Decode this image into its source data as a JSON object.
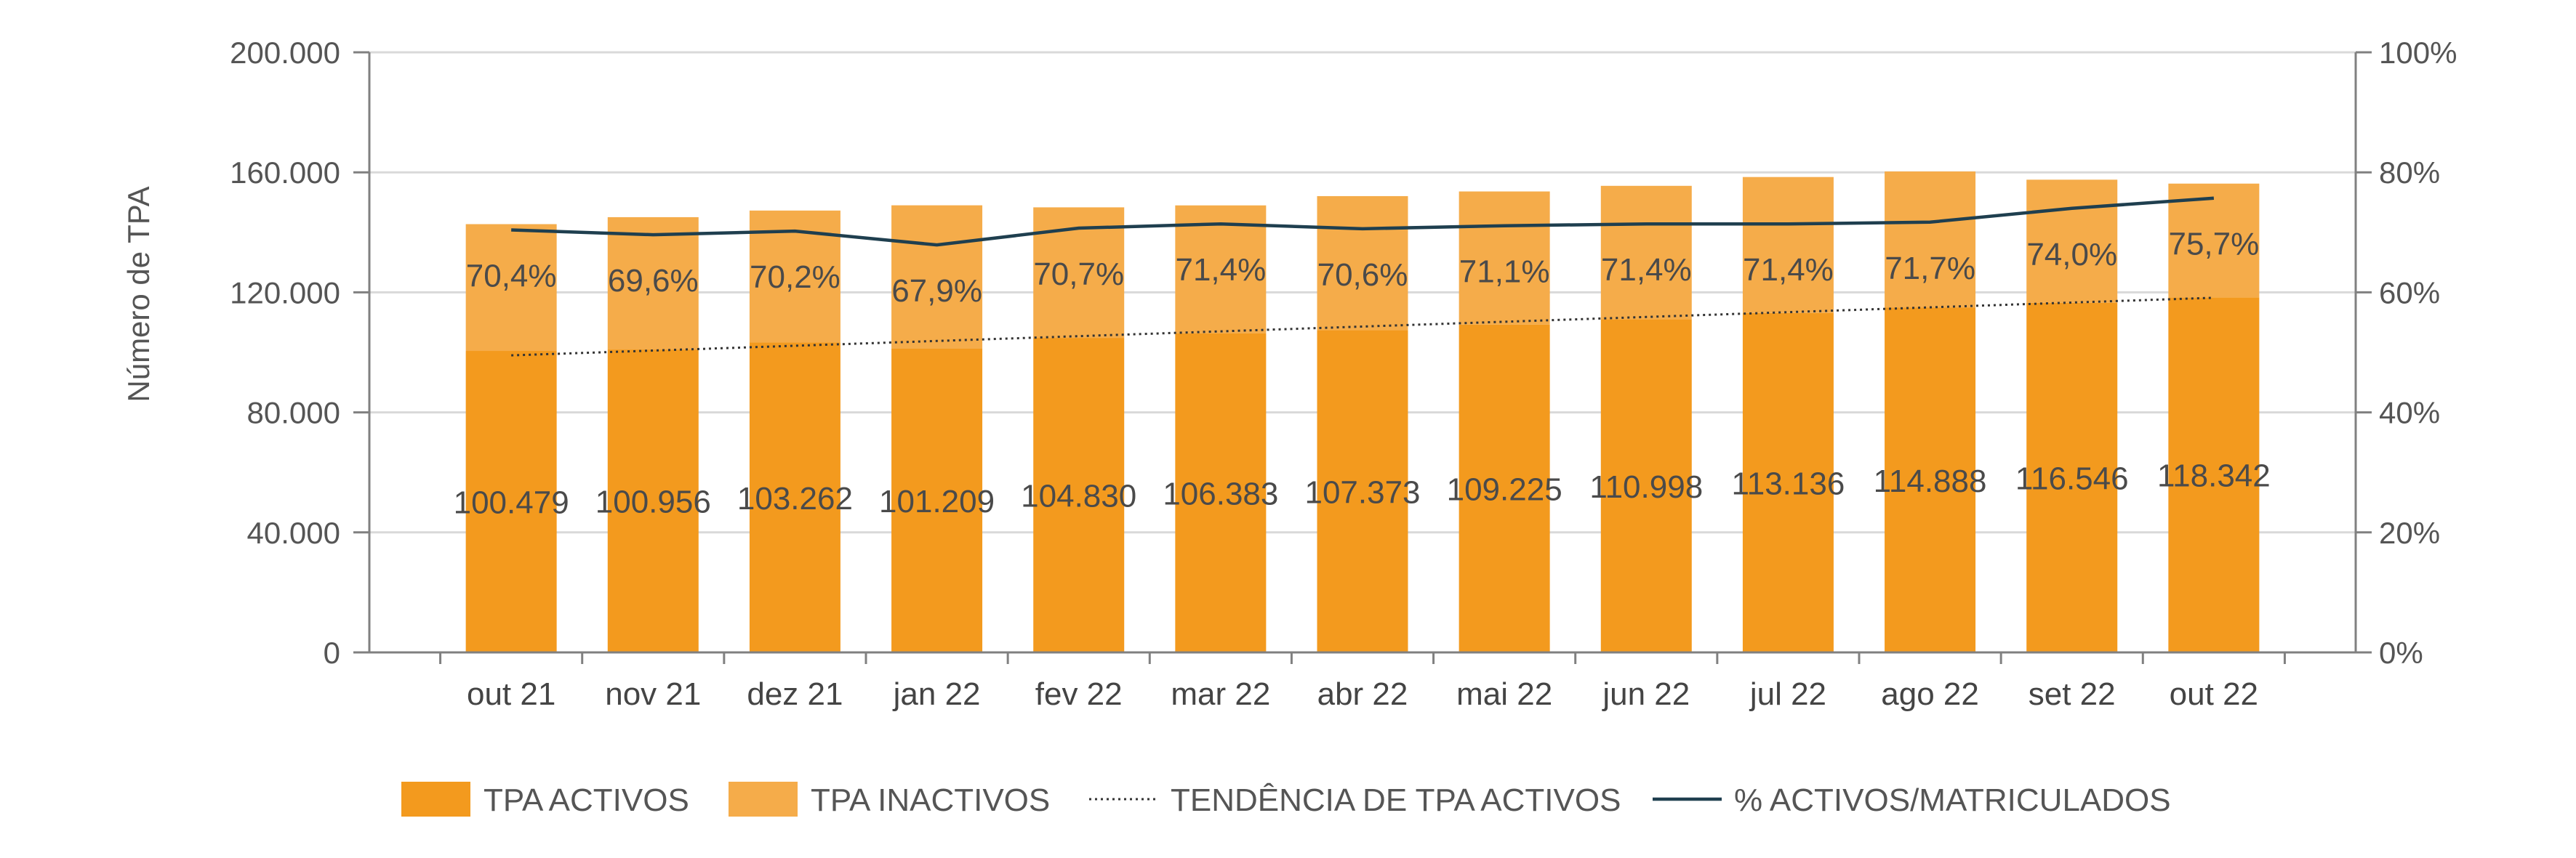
{
  "chart_data": {
    "type": "bar",
    "stacked": true,
    "categories": [
      "out 21",
      "nov 21",
      "dez 21",
      "jan 22",
      "fev 22",
      "mar 22",
      "abr 22",
      "mai 22",
      "jun 22",
      "jul 22",
      "ago 22",
      "set 22",
      "out 22"
    ],
    "series": [
      {
        "name": "TPA ACTIVOS",
        "type": "bar",
        "axis": "left",
        "color": "#F39A1E",
        "values": [
          100479,
          100956,
          103262,
          101209,
          104830,
          106383,
          107373,
          109225,
          110998,
          113136,
          114888,
          116546,
          118342
        ],
        "labels": [
          "100.479",
          "100.956",
          "103.262",
          "101.209",
          "104.830",
          "106.383",
          "107.373",
          "109.225",
          "110.998",
          "113.136",
          "114.888",
          "116.546",
          "118.342"
        ]
      },
      {
        "name": "TPA INACTIVOS",
        "type": "bar",
        "axis": "left",
        "color": "#F5AC4A",
        "values": [
          42250,
          44100,
          44000,
          47800,
          43500,
          42600,
          44700,
          44400,
          44500,
          45300,
          45400,
          41000,
          37900
        ]
      },
      {
        "name": "TENDÊNCIA DE TPA ACTIVOS",
        "type": "line",
        "style": "dotted",
        "axis": "left",
        "color": "#333333",
        "values": [
          99000,
          100600,
          102200,
          103800,
          105400,
          107000,
          108600,
          110200,
          111800,
          113400,
          115000,
          116600,
          118200
        ]
      },
      {
        "name": "% ACTIVOS/MATRICULADOS",
        "type": "line",
        "axis": "right",
        "color": "#1F3F4F",
        "values": [
          70.4,
          69.6,
          70.2,
          67.9,
          70.7,
          71.4,
          70.6,
          71.1,
          71.4,
          71.4,
          71.7,
          74.0,
          75.7
        ],
        "labels": [
          "70,4%",
          "69,6%",
          "70,2%",
          "67,9%",
          "70,7%",
          "71,4%",
          "70,6%",
          "71,1%",
          "71,4%",
          "71,4%",
          "71,7%",
          "74,0%",
          "75,7%"
        ]
      }
    ],
    "ylabel": "Número de TPA",
    "ylim": [
      0,
      200000
    ],
    "yticks": [
      0,
      40000,
      80000,
      120000,
      160000,
      200000
    ],
    "ytick_labels": [
      "0",
      "40.000",
      "80.000",
      "120.000",
      "160.000",
      "200.000"
    ],
    "y2lim": [
      0,
      100
    ],
    "y2ticks": [
      0,
      20,
      40,
      60,
      80,
      100
    ],
    "y2tick_labels": [
      "0%",
      "20%",
      "40%",
      "60%",
      "80%",
      "100%"
    ],
    "grid": true,
    "legend_position": "bottom",
    "colors": {
      "gridline": "#D9D9D9",
      "axis": "#808080"
    }
  }
}
